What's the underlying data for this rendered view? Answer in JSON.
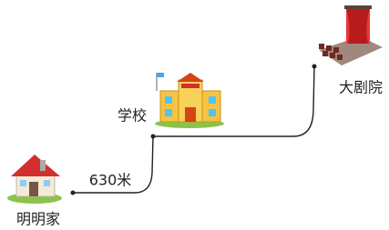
{
  "nodes": [
    {
      "label": "明明家"
    },
    {
      "label": "学校"
    },
    {
      "label": "大剧院"
    }
  ],
  "edges": [
    {
      "label": "630米"
    }
  ]
}
